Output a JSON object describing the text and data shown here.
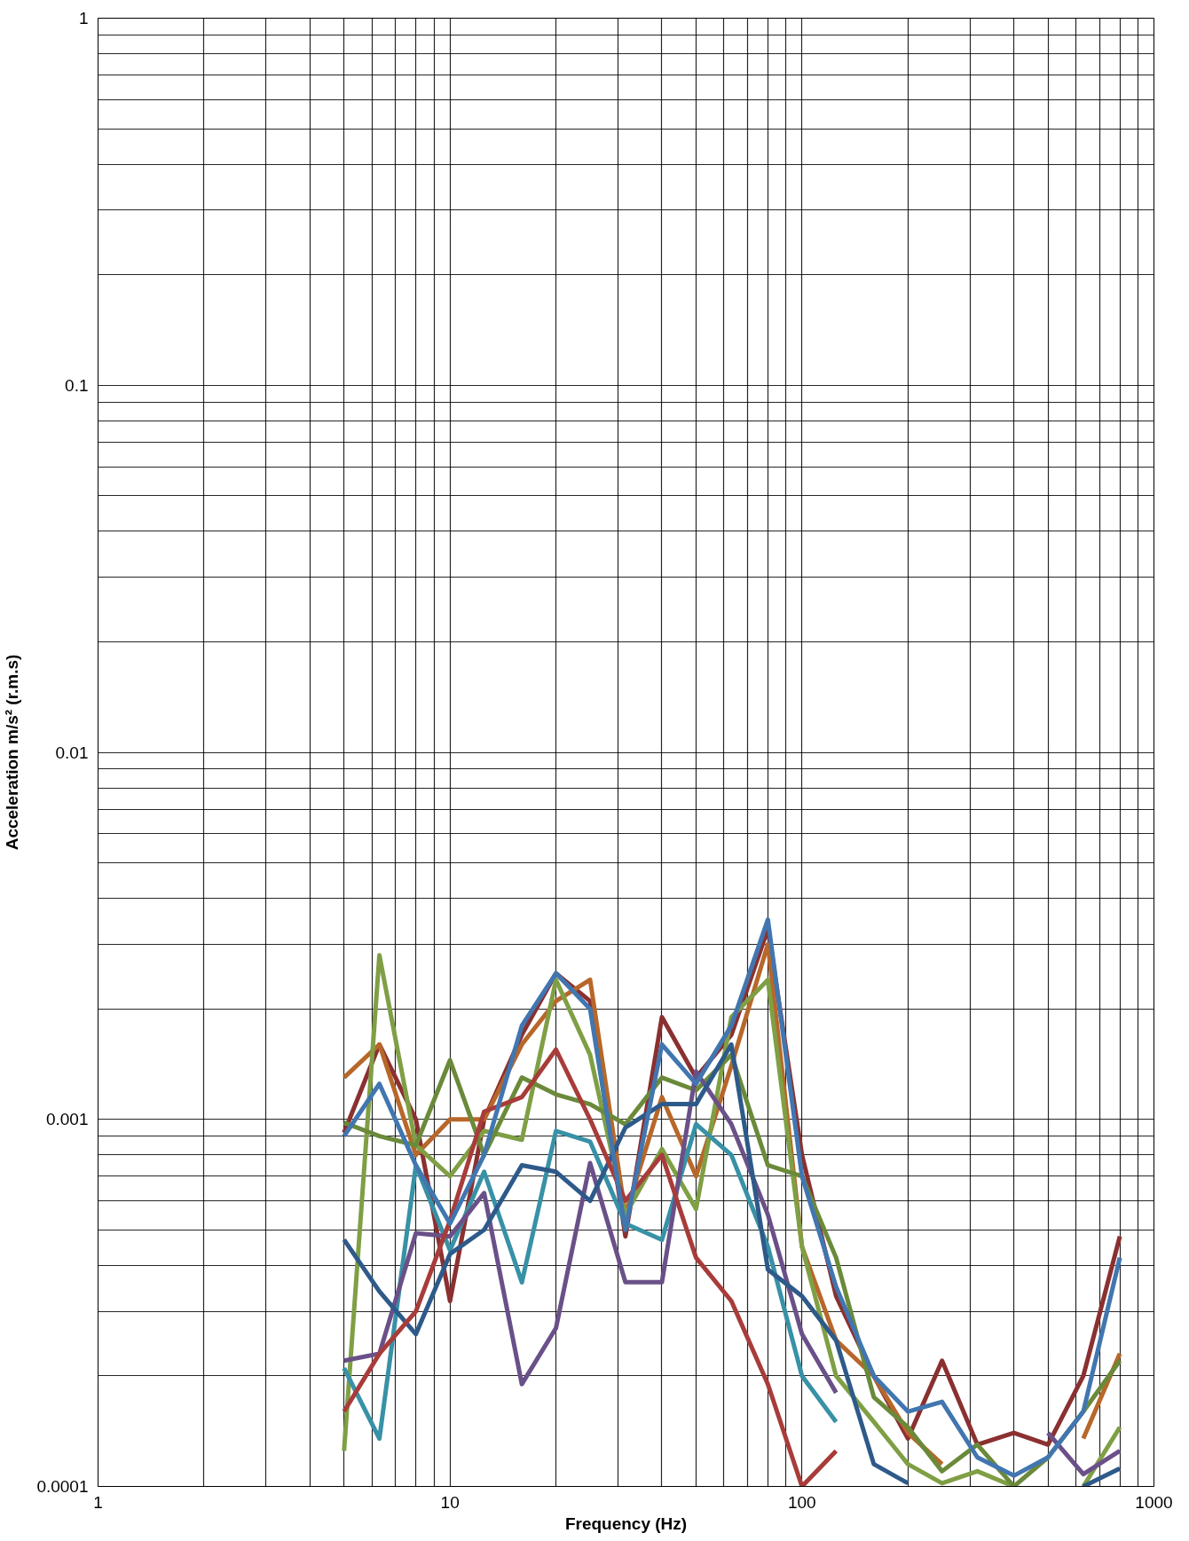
{
  "chart_data": {
    "type": "line",
    "xlabel": "Frequency (Hz)",
    "ylabel": "Acceleration m/s² (r.m.s)",
    "log": "xy",
    "grid": true,
    "marker": "none",
    "line_style": "solid",
    "xlim": [
      1,
      1000
    ],
    "ylim": [
      0.0001,
      1
    ],
    "xticks": [
      1,
      {
        "value": 2,
        "label": null
      },
      {
        "value": 3,
        "label": null
      },
      {
        "value": 4,
        "label": null
      },
      {
        "value": 5,
        "label": null
      },
      {
        "value": 6,
        "label": null
      },
      {
        "value": 7,
        "label": null
      },
      {
        "value": 8,
        "label": null
      },
      {
        "value": 9,
        "label": null
      },
      10,
      {
        "value": 20,
        "label": null
      },
      {
        "value": 30,
        "label": null
      },
      {
        "value": 40,
        "label": null
      },
      {
        "value": 50,
        "label": null
      },
      {
        "value": 60,
        "label": null
      },
      {
        "value": 70,
        "label": null
      },
      {
        "value": 80,
        "label": null
      },
      {
        "value": 90,
        "label": null
      },
      100,
      {
        "value": 200,
        "label": null
      },
      {
        "value": 300,
        "label": null
      },
      {
        "value": 400,
        "label": null
      },
      {
        "value": 500,
        "label": null
      },
      {
        "value": 600,
        "label": null
      },
      {
        "value": 700,
        "label": null
      },
      {
        "value": 800,
        "label": null
      },
      {
        "value": 900,
        "label": null
      },
      1000
    ],
    "yticks": [
      0.0001,
      {
        "value": 0.0002,
        "label": null
      },
      {
        "value": 0.0003,
        "label": null
      },
      {
        "value": 0.0004,
        "label": null
      },
      {
        "value": 0.0005,
        "label": null
      },
      {
        "value": 0.0006,
        "label": null
      },
      {
        "value": 0.0007,
        "label": null
      },
      {
        "value": 0.0008,
        "label": null
      },
      {
        "value": 0.0009,
        "label": null
      },
      0.001,
      {
        "value": 0.002,
        "label": null
      },
      {
        "value": 0.003,
        "label": null
      },
      {
        "value": 0.004,
        "label": null
      },
      {
        "value": 0.005,
        "label": null
      },
      {
        "value": 0.006,
        "label": null
      },
      {
        "value": 0.007,
        "label": null
      },
      {
        "value": 0.008,
        "label": null
      },
      {
        "value": 0.009,
        "label": null
      },
      0.01,
      {
        "value": 0.02,
        "label": null
      },
      {
        "value": 0.03,
        "label": null
      },
      {
        "value": 0.04,
        "label": null
      },
      {
        "value": 0.05,
        "label": null
      },
      {
        "value": 0.06,
        "label": null
      },
      {
        "value": 0.07,
        "label": null
      },
      {
        "value": 0.08,
        "label": null
      },
      {
        "value": 0.09,
        "label": null
      },
      0.1,
      {
        "value": 0.2,
        "label": null
      },
      {
        "value": 0.3,
        "label": null
      },
      {
        "value": 0.4,
        "label": null
      },
      {
        "value": 0.5,
        "label": null
      },
      {
        "value": 0.6,
        "label": null
      },
      {
        "value": 0.7,
        "label": null
      },
      {
        "value": 0.8,
        "label": null
      },
      {
        "value": 0.9,
        "label": null
      },
      1
    ],
    "x": [
      5,
      6.3,
      8,
      10,
      12.5,
      16,
      20,
      25,
      31.5,
      40,
      50,
      63,
      80,
      100,
      125,
      160,
      200,
      250,
      315,
      400,
      500,
      630,
      800
    ],
    "series": [
      {
        "color": "#8b3030",
        "values": [
          0.00092,
          0.0016,
          0.001,
          0.00032,
          0.001,
          0.0017,
          0.0025,
          0.0021,
          0.00048,
          0.0019,
          0.0013,
          0.0017,
          0.0033,
          0.0008,
          0.00033,
          0.0002,
          0.000135,
          0.00022,
          0.00013,
          0.00014,
          0.00013,
          0.0002,
          0.00048
        ]
      },
      {
        "color": "#b7672a",
        "values": [
          0.0013,
          0.0016,
          0.0008,
          0.001,
          0.001,
          0.0016,
          0.0021,
          0.0024,
          0.00055,
          0.00115,
          0.0007,
          0.0014,
          0.003,
          0.00045,
          0.00025,
          0.0002,
          0.00014,
          0.000115,
          null,
          null,
          null,
          0.000135,
          0.00023
        ]
      },
      {
        "color": "#7f9f45",
        "values": [
          0.000125,
          0.0028,
          0.00085,
          0.0007,
          0.00093,
          0.00088,
          0.0024,
          0.0015,
          0.00055,
          0.00083,
          0.00057,
          0.0019,
          0.0024,
          0.00045,
          0.0002,
          0.00015,
          0.000115,
          0.000102,
          0.00011,
          0.0001,
          null,
          0.0001,
          0.000145
        ]
      },
      {
        "color": "#6a8a3a",
        "values": [
          0.00098,
          0.0009,
          0.00085,
          0.00145,
          0.0008,
          0.0013,
          0.00117,
          0.0011,
          0.00097,
          0.0013,
          0.0012,
          0.0015,
          0.00075,
          0.0007,
          0.00042,
          0.000175,
          0.000145,
          0.00011,
          0.00013,
          0.0001,
          0.00012,
          0.00016,
          0.00022
        ]
      },
      {
        "color": "#3891a6",
        "values": [
          0.00021,
          0.000135,
          0.00075,
          0.00044,
          0.00072,
          0.00036,
          0.00093,
          0.00087,
          0.00052,
          0.00047,
          0.00097,
          0.0008,
          0.00045,
          0.0002,
          0.00015,
          null,
          null,
          null,
          null,
          null,
          null,
          null,
          null
        ]
      },
      {
        "color": "#6a5088",
        "values": [
          0.00022,
          0.00023,
          0.00049,
          0.00048,
          0.00063,
          0.00019,
          0.00027,
          0.00076,
          0.00036,
          0.00036,
          0.00135,
          0.00097,
          0.00055,
          0.00026,
          0.00018,
          null,
          null,
          null,
          null,
          null,
          0.00014,
          0.000108,
          0.000125
        ]
      },
      {
        "color": "#2e5a8a",
        "values": [
          0.00047,
          0.00034,
          0.00026,
          0.00043,
          0.0005,
          0.00075,
          0.00072,
          0.0006,
          0.00095,
          0.0011,
          0.0011,
          0.0016,
          0.00039,
          0.00033,
          0.00025,
          0.000115,
          0.000102,
          null,
          null,
          null,
          null,
          0.0001,
          0.000112
        ]
      },
      {
        "color": "#a83c3a",
        "values": [
          0.00016,
          0.00023,
          0.0003,
          0.00053,
          0.00105,
          0.00115,
          0.00155,
          0.001,
          0.0006,
          0.0008,
          0.00042,
          0.00032,
          0.00019,
          0.0001,
          0.000125,
          null,
          null,
          null,
          null,
          null,
          null,
          null,
          null
        ]
      },
      {
        "color": "#4176b0",
        "values": [
          0.0009,
          0.00125,
          0.00075,
          0.00052,
          0.0008,
          0.0018,
          0.0025,
          0.002,
          0.0005,
          0.0016,
          0.00125,
          0.0018,
          0.0035,
          0.0007,
          0.00035,
          0.0002,
          0.00016,
          0.00017,
          0.00012,
          0.000107,
          0.00012,
          0.00016,
          0.00042
        ]
      }
    ]
  }
}
